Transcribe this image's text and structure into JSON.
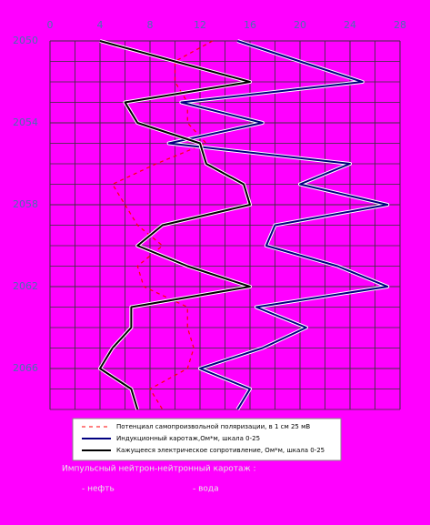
{
  "chart_data": {
    "type": "line",
    "y": [
      2050,
      2051,
      2052,
      2053,
      2054,
      2055,
      2056,
      2057,
      2058,
      2059,
      2060,
      2061,
      2062,
      2063,
      2064,
      2065,
      2066,
      2067,
      2068
    ],
    "xlim": [
      0,
      28
    ],
    "xticks": [
      0,
      4,
      8,
      12,
      16,
      20,
      24,
      28
    ],
    "ylim": [
      2050,
      2068
    ],
    "yticks": [
      2050,
      2054,
      2058,
      2062,
      2066
    ],
    "y_inverted": true,
    "grid": true,
    "series": [
      {
        "name": "Потенциал самопроизвольной поляризации, в 1 см 25 мВ",
        "color": "#ff0000",
        "dashed": true,
        "values": [
          13,
          10,
          10,
          11,
          11,
          12.5,
          8.5,
          5,
          6,
          7,
          9,
          7,
          7.5,
          11,
          11,
          11.5,
          11,
          8,
          9
        ]
      },
      {
        "name": "Индукционный каротаж,Ом*м, шкала 0-25",
        "color": "#000080",
        "dashed": false,
        "values": [
          15,
          20,
          25,
          10.5,
          17,
          9.5,
          24,
          20,
          27,
          18,
          17.3,
          23,
          27,
          16.5,
          20.5,
          17,
          12,
          16,
          15
        ]
      },
      {
        "name": "Кажущееся электрическое сопротивление, Ом*м, шкала 0-25",
        "color": "#000000",
        "dashed": false,
        "values": [
          4,
          10,
          16,
          6,
          7,
          12,
          12.5,
          15.5,
          16,
          9,
          7,
          11,
          16,
          6.5,
          6.5,
          5,
          4,
          6.5,
          7
        ]
      }
    ],
    "notes": [
      "Импульсный нейтрон-нейтронный каротаж :",
      "- нефть",
      "- вода"
    ]
  }
}
